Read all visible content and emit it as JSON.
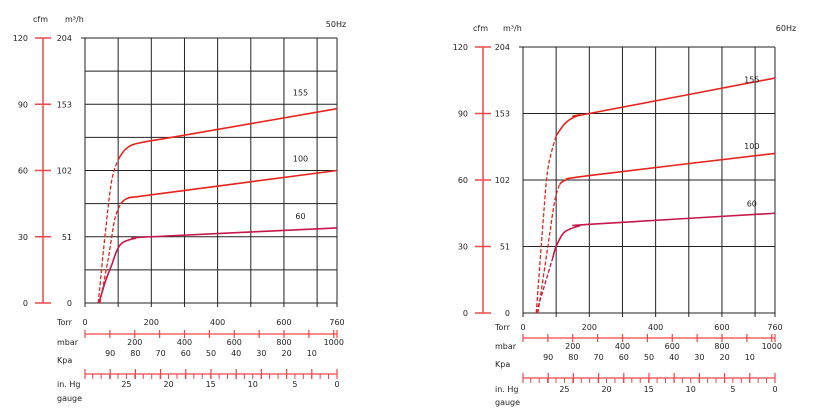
{
  "chart_data": [
    {
      "type": "line",
      "title": "50Hz",
      "xlabel": "Torr",
      "ylabel_primary": "cfm",
      "ylabel_secondary": "m³/h",
      "xlim": [
        0,
        760
      ],
      "ylim": [
        0,
        120
      ],
      "grid_step_cfm": 15,
      "x_gridlines": [
        0,
        100,
        200,
        300,
        400,
        500,
        600,
        700,
        760
      ],
      "x_ticks": [
        "0",
        "200",
        "400",
        "600",
        "760"
      ],
      "y_ticks_cfm": [
        "0",
        "30",
        "60",
        "90",
        "120"
      ],
      "y_ticks_m3h": [
        "0",
        "51",
        "102",
        "153",
        "204"
      ],
      "mbar_label": "mbar",
      "mbar_ticks": [
        "200",
        "400",
        "600",
        "800",
        "1000"
      ],
      "kpa_label": "Kpa",
      "kpa_ticks": [
        "90",
        "80",
        "70",
        "60",
        "50",
        "40",
        "30",
        "20",
        "10"
      ],
      "inhg_label": "in. Hg",
      "inhg_label2": "gauge",
      "inhg_ticks": [
        "25",
        "20",
        "15",
        "10",
        "5",
        "0"
      ],
      "series": [
        {
          "name": "155",
          "color": "#e8231c",
          "dashed": [
            [
              40,
              0
            ],
            [
              60,
              30
            ],
            [
              80,
              55
            ],
            [
              100,
              65
            ]
          ],
          "solid": [
            [
              100,
              65
            ],
            [
              125,
              70
            ],
            [
              165,
              72.5
            ],
            [
              300,
              76
            ],
            [
              760,
              88
            ]
          ]
        },
        {
          "name": "100",
          "color": "#e8231c",
          "dashed": [
            [
              45,
              0
            ],
            [
              70,
              20
            ],
            [
              90,
              38
            ],
            [
              108,
              45
            ]
          ],
          "solid": [
            [
              108,
              45
            ],
            [
              130,
              47.5
            ],
            [
              200,
              49
            ],
            [
              760,
              60
            ]
          ]
        },
        {
          "name": "60",
          "color": "#c8174a",
          "dashed": [],
          "solid": [
            [
              42,
              0
            ],
            [
              62,
              10
            ],
            [
              80,
              17
            ],
            [
              97,
              24
            ],
            [
              115,
              27.5
            ],
            [
              150,
              29.2
            ],
            [
              200,
              30
            ],
            [
              760,
              34
            ]
          ]
        }
      ]
    },
    {
      "type": "line",
      "title": "60Hz",
      "xlabel": "Torr",
      "ylabel_primary": "cfm",
      "ylabel_secondary": "m³/h",
      "xlim": [
        0,
        760
      ],
      "ylim": [
        0,
        120
      ],
      "grid_step_cfm": 30,
      "x_gridlines": [
        0,
        100,
        200,
        300,
        400,
        500,
        600,
        700,
        760
      ],
      "x_ticks": [
        "0",
        "200",
        "400",
        "600",
        "760"
      ],
      "y_ticks_cfm": [
        "0",
        "30",
        "60",
        "90",
        "120"
      ],
      "y_ticks_m3h": [
        "0",
        "51",
        "102",
        "153",
        "204"
      ],
      "mbar_label": "mbar",
      "mbar_ticks": [
        "200",
        "400",
        "600",
        "800",
        "1000"
      ],
      "kpa_label": "Kpa",
      "kpa_ticks": [
        "90",
        "80",
        "70",
        "60",
        "50",
        "40",
        "30",
        "20",
        "10"
      ],
      "inhg_label": "in. Hg",
      "inhg_label2": "gauge",
      "inhg_ticks": [
        "25",
        "20",
        "15",
        "10",
        "5",
        "0"
      ],
      "series": [
        {
          "name": "155",
          "color": "#e8231c",
          "dashed": [
            [
              40,
              0
            ],
            [
              60,
              40
            ],
            [
              75,
              65
            ],
            [
              100,
              80
            ]
          ],
          "solid": [
            [
              100,
              80
            ],
            [
              130,
              86
            ],
            [
              170,
              89.3
            ],
            [
              200,
              90
            ],
            [
              760,
              106
            ]
          ]
        },
        {
          "name": "100",
          "color": "#e8231c",
          "dashed": [
            [
              45,
              0
            ],
            [
              75,
              30
            ],
            [
              95,
              50
            ],
            [
              110,
              58
            ]
          ],
          "solid": [
            [
              110,
              58
            ],
            [
              130,
              60
            ],
            [
              200,
              62
            ],
            [
              760,
              72
            ]
          ]
        },
        {
          "name": "60",
          "color": "#c8174a",
          "dashed": [
            [
              40,
              0
            ],
            [
              70,
              15
            ],
            [
              90,
              25
            ]
          ],
          "solid": [
            [
              90,
              25
            ],
            [
              100,
              30
            ],
            [
              125,
              36.5
            ],
            [
              170,
              39.3
            ],
            [
              200,
              40
            ],
            [
              760,
              45
            ]
          ]
        }
      ]
    }
  ]
}
